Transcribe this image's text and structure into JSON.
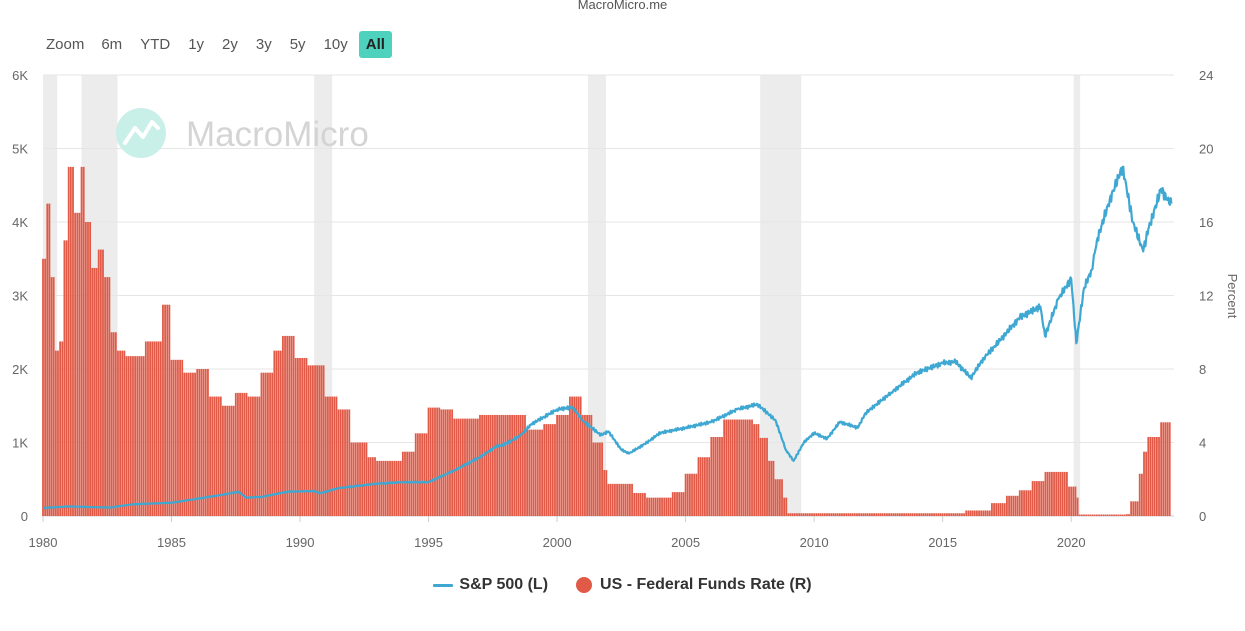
{
  "source": "MacroMicro.me",
  "watermark": "MacroMicro",
  "zoom": {
    "label": "Zoom",
    "buttons": [
      "6m",
      "YTD",
      "1y",
      "2y",
      "3y",
      "5y",
      "10y",
      "All"
    ],
    "active": "All"
  },
  "legend": {
    "sp500": "S&P 500 (L)",
    "ffr": "US - Federal Funds Rate (R)"
  },
  "colors": {
    "sp500": "#3fa8d2",
    "ffr": "#e05a47",
    "recession": "#ececec",
    "grid": "#e6e6e6",
    "accent": "#4ed1bd"
  },
  "chart_data": {
    "type": "line",
    "x_range": [
      1980,
      2024
    ],
    "x_ticks": [
      "1980",
      "1985",
      "1990",
      "1995",
      "2000",
      "2005",
      "2010",
      "2015",
      "2020"
    ],
    "y_left": {
      "ticks": [
        "0",
        "1K",
        "2K",
        "3K",
        "4K",
        "5K",
        "6K"
      ],
      "range": [
        0,
        6000
      ]
    },
    "y_right": {
      "label": "Percent",
      "ticks": [
        "0",
        "4",
        "8",
        "12",
        "16",
        "20",
        "24"
      ],
      "range": [
        0,
        24
      ]
    },
    "grid": true,
    "legend_position": "bottom",
    "recessions": [
      [
        1980.0,
        1980.55
      ],
      [
        1981.5,
        1982.9
      ],
      [
        1990.55,
        1991.25
      ],
      [
        2001.2,
        2001.9
      ],
      [
        2007.9,
        2009.5
      ],
      [
        2020.1,
        2020.35
      ]
    ],
    "series": [
      {
        "name": "S&P 500 (L)",
        "axis": "left",
        "style": "line",
        "x": [
          1980.0,
          1981.0,
          1982.0,
          1982.6,
          1983.5,
          1985.0,
          1986.0,
          1987.0,
          1987.6,
          1987.9,
          1988.5,
          1989.5,
          1990.5,
          1990.8,
          1991.5,
          1993.0,
          1994.0,
          1995.0,
          1996.0,
          1997.0,
          1997.6,
          1998.0,
          1998.6,
          1999.0,
          1999.5,
          2000.0,
          2000.6,
          2001.0,
          2001.7,
          2002.0,
          2002.5,
          2002.8,
          2003.5,
          2004.0,
          2005.0,
          2006.0,
          2007.0,
          2007.8,
          2008.5,
          2008.9,
          2009.2,
          2009.6,
          2010.0,
          2010.5,
          2011.0,
          2011.7,
          2012.0,
          2013.0,
          2014.0,
          2015.0,
          2015.5,
          2016.1,
          2016.6,
          2017.0,
          2018.0,
          2018.8,
          2018.98,
          2019.5,
          2020.0,
          2020.2,
          2020.5,
          2020.8,
          2021.0,
          2021.5,
          2022.0,
          2022.4,
          2022.8,
          2023.0,
          2023.5,
          2023.75,
          2023.9
        ],
        "values": [
          110,
          130,
          120,
          115,
          160,
          180,
          235,
          290,
          330,
          250,
          260,
          330,
          340,
          310,
          380,
          440,
          460,
          460,
          620,
          800,
          940,
          980,
          1100,
          1250,
          1350,
          1450,
          1480,
          1300,
          1100,
          1150,
          900,
          850,
          1000,
          1130,
          1200,
          1280,
          1450,
          1520,
          1300,
          900,
          750,
          1000,
          1130,
          1050,
          1280,
          1200,
          1400,
          1680,
          1950,
          2080,
          2100,
          1880,
          2150,
          2300,
          2700,
          2850,
          2450,
          2950,
          3230,
          2350,
          3100,
          3350,
          3750,
          4300,
          4750,
          4000,
          3600,
          3900,
          4450,
          4300,
          4250
        ]
      },
      {
        "name": "US - Federal Funds Rate (R)",
        "axis": "right",
        "style": "column",
        "x": [
          1980.0,
          1980.15,
          1980.3,
          1980.45,
          1980.6,
          1980.8,
          1981.0,
          1981.2,
          1981.45,
          1981.6,
          1981.9,
          1982.1,
          1982.4,
          1982.6,
          1982.9,
          1983.2,
          1984.0,
          1984.6,
          1985.0,
          1985.5,
          1986.0,
          1986.5,
          1987.0,
          1987.5,
          1988.0,
          1988.5,
          1989.0,
          1989.3,
          1989.8,
          1990.3,
          1991.0,
          1991.5,
          1992.0,
          1992.6,
          1993.0,
          1994.0,
          1994.5,
          1995.0,
          1995.5,
          1996.0,
          1997.0,
          1998.0,
          1998.8,
          1999.5,
          2000.0,
          2000.5,
          2001.0,
          2001.4,
          2001.8,
          2002.0,
          2003.0,
          2003.5,
          2004.0,
          2004.5,
          2005.0,
          2005.5,
          2006.0,
          2006.5,
          2007.0,
          2007.6,
          2007.9,
          2008.2,
          2008.5,
          2008.8,
          2009.0,
          2010.0,
          2015.9,
          2016.9,
          2017.5,
          2018.0,
          2018.5,
          2019.0,
          2019.5,
          2019.9,
          2020.2,
          2020.3,
          2022.1,
          2022.3,
          2022.6,
          2022.8,
          2023.0,
          2023.5,
          2023.9
        ],
        "values": [
          14.0,
          17.0,
          13.0,
          9.0,
          9.5,
          15.0,
          19.0,
          16.5,
          19.0,
          16.0,
          13.5,
          14.5,
          13.0,
          10.0,
          9.0,
          8.7,
          9.5,
          11.5,
          8.5,
          7.8,
          8.0,
          6.5,
          6.0,
          6.7,
          6.5,
          7.8,
          9.0,
          9.8,
          8.6,
          8.2,
          6.5,
          5.8,
          4.0,
          3.2,
          3.0,
          3.5,
          4.5,
          5.9,
          5.8,
          5.3,
          5.5,
          5.5,
          4.7,
          5.0,
          5.5,
          6.5,
          5.5,
          4.0,
          2.5,
          1.75,
          1.25,
          1.0,
          1.0,
          1.3,
          2.3,
          3.2,
          4.3,
          5.25,
          5.25,
          5.0,
          4.25,
          3.0,
          2.0,
          1.0,
          0.15,
          0.15,
          0.3,
          0.7,
          1.1,
          1.4,
          1.9,
          2.4,
          2.4,
          1.6,
          1.0,
          0.08,
          0.1,
          0.8,
          2.3,
          3.5,
          4.3,
          5.1,
          5.3
        ]
      }
    ]
  }
}
